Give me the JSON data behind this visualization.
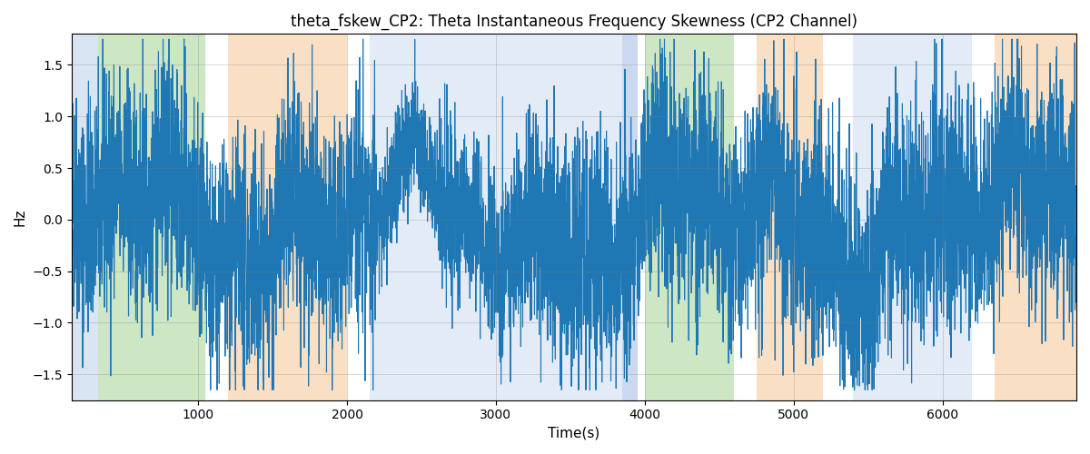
{
  "title": "theta_fskew_CP2: Theta Instantaneous Frequency Skewness (CP2 Channel)",
  "xlabel": "Time(s)",
  "ylabel": "Hz",
  "xlim": [
    150,
    6900
  ],
  "ylim": [
    -1.75,
    1.8
  ],
  "line_color": "#1f77b4",
  "line_width": 0.8,
  "background_color": "#ffffff",
  "bands": [
    {
      "xstart": 150,
      "xend": 330,
      "color": "#aec6e8",
      "alpha": 0.45
    },
    {
      "xstart": 330,
      "xend": 1050,
      "color": "#90c97e",
      "alpha": 0.45
    },
    {
      "xstart": 1050,
      "xend": 1200,
      "color": "#ffffff",
      "alpha": 0.0
    },
    {
      "xstart": 1200,
      "xend": 2000,
      "color": "#f5c18a",
      "alpha": 0.5
    },
    {
      "xstart": 2000,
      "xend": 2150,
      "color": "#ffffff",
      "alpha": 0.0
    },
    {
      "xstart": 2150,
      "xend": 3850,
      "color": "#aec6e8",
      "alpha": 0.35
    },
    {
      "xstart": 3850,
      "xend": 3950,
      "color": "#aec6e8",
      "alpha": 0.65
    },
    {
      "xstart": 3950,
      "xend": 4000,
      "color": "#ffffff",
      "alpha": 0.0
    },
    {
      "xstart": 4000,
      "xend": 4600,
      "color": "#90c97e",
      "alpha": 0.45
    },
    {
      "xstart": 4600,
      "xend": 4750,
      "color": "#ffffff",
      "alpha": 0.0
    },
    {
      "xstart": 4750,
      "xend": 5200,
      "color": "#f5c18a",
      "alpha": 0.5
    },
    {
      "xstart": 5200,
      "xend": 5400,
      "color": "#ffffff",
      "alpha": 0.0
    },
    {
      "xstart": 5400,
      "xend": 6200,
      "color": "#aec6e8",
      "alpha": 0.35
    },
    {
      "xstart": 6200,
      "xend": 6350,
      "color": "#ffffff",
      "alpha": 0.0
    },
    {
      "xstart": 6350,
      "xend": 6900,
      "color": "#f5c18a",
      "alpha": 0.5
    }
  ],
  "seed": 42,
  "n_points": 6750,
  "x_start": 150,
  "x_end": 6900
}
